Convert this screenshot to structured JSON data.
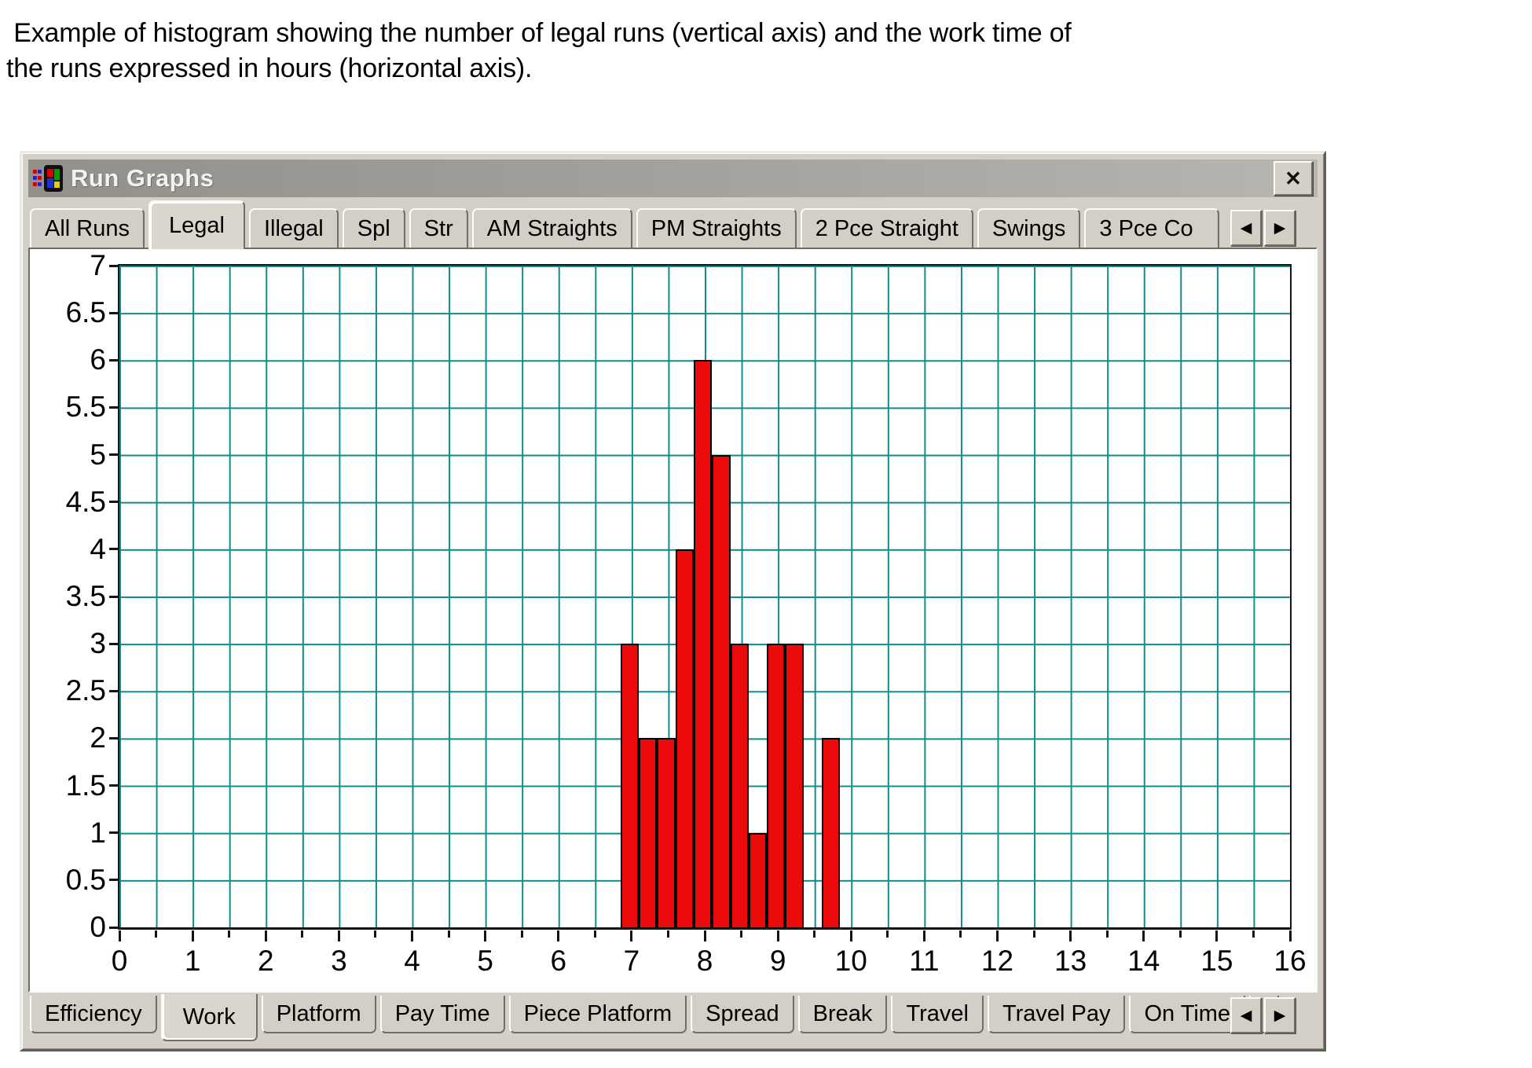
{
  "caption": {
    "line1": " Example of histogram showing the number of legal runs (vertical axis) and the work time of",
    "line2": "the runs expressed in hours (horizontal axis)."
  },
  "window": {
    "title": "Run Graphs",
    "close_label": "✕",
    "top_tabs": {
      "scroll_left": "◀",
      "scroll_right": "▶",
      "items": [
        {
          "label": "All Runs",
          "active": false
        },
        {
          "label": "Legal",
          "active": true
        },
        {
          "label": "Illegal",
          "active": false
        },
        {
          "label": "Spl",
          "active": false
        },
        {
          "label": "Str",
          "active": false
        },
        {
          "label": "AM Straights",
          "active": false
        },
        {
          "label": "PM Straights",
          "active": false
        },
        {
          "label": "2 Pce Straight",
          "active": false
        },
        {
          "label": "Swings",
          "active": false
        },
        {
          "label": "3 Pce Co",
          "active": false,
          "truncated": true
        }
      ]
    },
    "bottom_tabs": {
      "scroll_left": "◀",
      "scroll_right": "▶",
      "items": [
        {
          "label": "Efficiency",
          "active": false
        },
        {
          "label": "Work",
          "active": true
        },
        {
          "label": "Platform",
          "active": false
        },
        {
          "label": "Pay Time",
          "active": false
        },
        {
          "label": "Piece Platform",
          "active": false
        },
        {
          "label": "Spread",
          "active": false
        },
        {
          "label": "Break",
          "active": false
        },
        {
          "label": "Travel",
          "active": false
        },
        {
          "label": "Travel Pay",
          "active": false
        },
        {
          "label": "On Time",
          "active": false
        },
        {
          "label": "(",
          "active": false,
          "truncated": true
        }
      ]
    }
  },
  "chart_data": {
    "type": "bar",
    "subtype": "histogram",
    "title": "",
    "xlabel": "",
    "ylabel": "",
    "x_axis": {
      "min": 0,
      "max": 16,
      "label_step": 1,
      "grid_step": 0.5,
      "tick_labels": [
        "0",
        "1",
        "2",
        "3",
        "4",
        "5",
        "6",
        "7",
        "8",
        "9",
        "10",
        "11",
        "12",
        "13",
        "14",
        "15",
        "16"
      ]
    },
    "y_axis": {
      "min": 0,
      "max": 7,
      "label_step": 0.5,
      "grid_step": 0.5,
      "tick_labels": [
        "0",
        "0.5",
        "1",
        "1.5",
        "2",
        "2.5",
        "3",
        "3.5",
        "4",
        "4.5",
        "5",
        "5.5",
        "6",
        "6.5",
        "7"
      ]
    },
    "bins": {
      "start": 6.85,
      "bin_width": 0.25,
      "counts": [
        3,
        2,
        2,
        4,
        6,
        5,
        3,
        1,
        3,
        3,
        0,
        2
      ]
    },
    "grid": true,
    "legend_position": "none",
    "bar_color": "#ec0b0b",
    "grid_color": "#0f8b8b"
  }
}
